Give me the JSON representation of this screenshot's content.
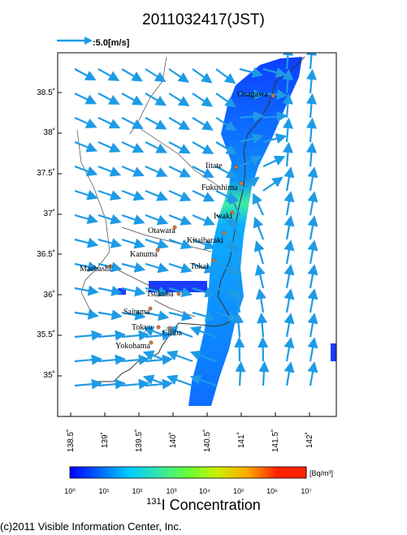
{
  "title": "2011032417(JST)",
  "reference_vector": {
    "label": ":5.0[m/s]",
    "speed_ms": 5.0
  },
  "map": {
    "lon_range": [
      138.4,
      142.4
    ],
    "lat_range": [
      34.5,
      39.0
    ],
    "lat_ticks": [
      "38.5˚",
      "38˚",
      "37.5˚",
      "37˚",
      "36.5˚",
      "36˚",
      "35.5˚",
      "35˚"
    ],
    "lon_ticks": [
      "138.5˚",
      "139˚",
      "139.5˚",
      "140˚",
      "140.5˚",
      "141˚",
      "141.5˚",
      "142˚"
    ],
    "cities": [
      {
        "name": "Onagawa"
      },
      {
        "name": "Iitate"
      },
      {
        "name": "Fukushima"
      },
      {
        "name": "Iwaki"
      },
      {
        "name": "Otawara"
      },
      {
        "name": "Kitaibaraki"
      },
      {
        "name": "Kanuma"
      },
      {
        "name": "Tokai"
      },
      {
        "name": "Maebashi"
      },
      {
        "name": "Tsukuba"
      },
      {
        "name": "Saitama"
      },
      {
        "name": "Tokyo"
      },
      {
        "name": "Chiba"
      },
      {
        "name": "Yokohama"
      }
    ]
  },
  "colorbar": {
    "unit": "[Bq/m³]",
    "labels": [
      "10⁰",
      "10¹",
      "10²",
      "10³",
      "10⁴",
      "10⁵",
      "10⁶",
      "10⁷"
    ],
    "colors": [
      "#0000ff",
      "#0066ff",
      "#00ccff",
      "#33e6aa",
      "#66ff33",
      "#ccee00",
      "#ffaa00",
      "#ff2200"
    ]
  },
  "legend_title": {
    "sup": "131",
    "text": "I Concentration"
  },
  "footer": "(c)2011 Visible Information Center, Inc."
}
